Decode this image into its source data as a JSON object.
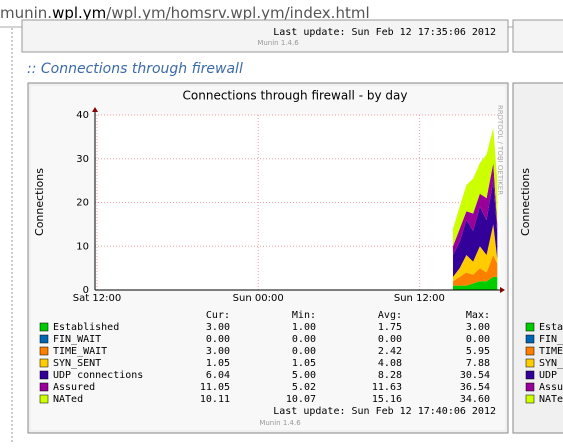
{
  "address_bar": {
    "url_prefix": "munin.",
    "url_bold": "wpl.ym",
    "url_rest": "/wpl.ym/homsrv.wpl.ym/index.html"
  },
  "previous_panel": {
    "last_update": "Last update:  Sun Feb 12 17:35:06 2012",
    "version": "Munin 1.4.6"
  },
  "section_title": ":: Connections through firewall",
  "chart_data": {
    "type": "area",
    "stacked": true,
    "title": "Connections through firewall - by day",
    "y_label": "Connections",
    "watermark": "RRDTOOL / TOBI OETIKER",
    "xlim": [
      0,
      30
    ],
    "xticks": [
      {
        "value": 0,
        "label": "Sat 12:00"
      },
      {
        "value": 12,
        "label": "Sun 00:00"
      },
      {
        "value": 24,
        "label": "Sun 12:00"
      }
    ],
    "ylim": [
      0,
      40
    ],
    "yticks": [
      0,
      10,
      20,
      30,
      40
    ],
    "grid": true,
    "x": [
      26.5,
      27,
      27.5,
      28,
      28.5,
      29,
      29.5,
      29.8
    ],
    "series": [
      {
        "name": "Established",
        "color": "#00cc00",
        "values": [
          1,
          1,
          1,
          1.5,
          2,
          2,
          3,
          3
        ]
      },
      {
        "name": "FIN_WAIT",
        "color": "#0066b3",
        "values": [
          0,
          0,
          0,
          0,
          0,
          0,
          0,
          0
        ]
      },
      {
        "name": "TIME_WAIT",
        "color": "#ff8000",
        "values": [
          1,
          2,
          3,
          2,
          3,
          2,
          5,
          3
        ]
      },
      {
        "name": "SYN_SENT",
        "color": "#ffcc00",
        "values": [
          1,
          2,
          4,
          3,
          5,
          4,
          7,
          1
        ]
      },
      {
        "name": "UDP connections",
        "color": "#330099",
        "values": [
          5,
          6,
          8,
          7,
          9,
          8,
          10,
          6
        ]
      },
      {
        "name": "Assured",
        "color": "#990099",
        "values": [
          2,
          3,
          2,
          4,
          3,
          5,
          4,
          2
        ]
      },
      {
        "name": "NATed",
        "color": "#ccff00",
        "values": [
          4,
          5,
          6,
          8,
          7,
          10,
          8,
          10
        ]
      }
    ],
    "legend_columns": [
      "Cur:",
      "Min:",
      "Avg:",
      "Max:"
    ],
    "legend_table": [
      [
        "3.00",
        "1.00",
        "1.75",
        "3.00"
      ],
      [
        "0.00",
        "0.00",
        "0.00",
        "0.00"
      ],
      [
        "3.00",
        "0.00",
        "2.42",
        "5.95"
      ],
      [
        "1.05",
        "1.05",
        "4.08",
        "7.88"
      ],
      [
        "6.04",
        "5.00",
        "8.28",
        "30.54"
      ],
      [
        "11.05",
        "5.02",
        "11.63",
        "36.54"
      ],
      [
        "10.11",
        "10.07",
        "15.16",
        "34.60"
      ]
    ],
    "last_update": "Last update:  Sun Feb 12 17:40:06 2012",
    "version": "Munin 1.4.6"
  },
  "right_panel": {
    "y_label": "Connections",
    "legend": [
      "Esta",
      "FIN_",
      "TIME",
      "SYN_",
      "UDP",
      "Assu",
      "NATe"
    ]
  }
}
